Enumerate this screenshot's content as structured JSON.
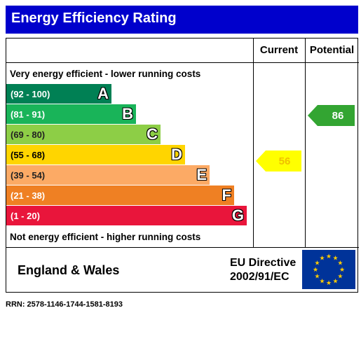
{
  "title": "Energy Efficiency Rating",
  "columns": {
    "current": "Current",
    "potential": "Potential"
  },
  "top_caption": "Very energy efficient - lower running costs",
  "bottom_caption": "Not energy efficient - higher running costs",
  "bands": [
    {
      "range": "(92 - 100)",
      "letter": "A",
      "color": "#008054"
    },
    {
      "range": "(81 - 91)",
      "letter": "B",
      "color": "#19b459"
    },
    {
      "range": "(69 - 80)",
      "letter": "C",
      "color": "#8dce46"
    },
    {
      "range": "(55 - 68)",
      "letter": "D",
      "color": "#ffd500"
    },
    {
      "range": "(39 - 54)",
      "letter": "E",
      "color": "#fcaa65"
    },
    {
      "range": "(21 - 38)",
      "letter": "F",
      "color": "#ef8023"
    },
    {
      "range": "(1 - 20)",
      "letter": "G",
      "color": "#e9153b"
    }
  ],
  "current": {
    "value": "56",
    "color": "#ffff00"
  },
  "potential": {
    "value": "86",
    "color": "#33a532"
  },
  "footer": {
    "region": "England & Wales",
    "directive_line1": "EU Directive",
    "directive_line2": "2002/91/EC",
    "flag_icon": "eu-flag-icon"
  },
  "rrn": "RRN: 2578-1146-1744-1581-8193"
}
